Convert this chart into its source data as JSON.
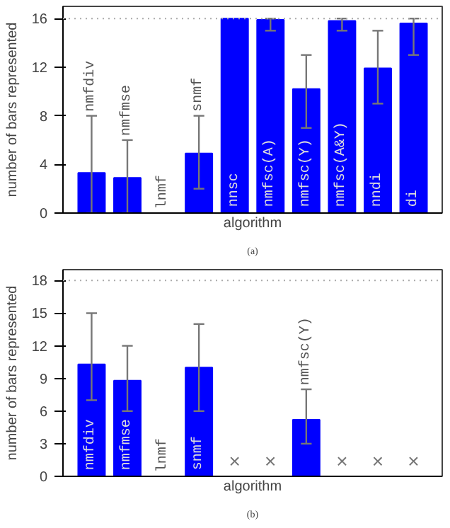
{
  "chart_data": [
    {
      "type": "bar",
      "ylabel": "number of bars represented",
      "xlabel": "algorithm",
      "annotations": [
        "(a)"
      ],
      "categories": [
        "nmfdiv",
        "nmfmse",
        "lnmf",
        "snmf",
        "nnsc",
        "nmfsc(A)",
        "nmfsc(Y)",
        "nmfsc(A&Y)",
        "nndi",
        "di"
      ],
      "values": [
        3.3,
        2.9,
        0,
        4.9,
        16,
        15.9,
        10.2,
        15.8,
        11.9,
        15.6
      ],
      "errors": [
        [
          0,
          8
        ],
        [
          0,
          6
        ],
        null,
        [
          2,
          8
        ],
        null,
        [
          15,
          16
        ],
        [
          7,
          13
        ],
        [
          15,
          16
        ],
        [
          9,
          15
        ],
        [
          13,
          16
        ]
      ],
      "color": "#0000ff",
      "ylim": [
        0,
        17
      ],
      "yticks": [
        0,
        4,
        8,
        12,
        16
      ],
      "tick_labels": "y",
      "ref_lines": [
        {
          "axis": "y",
          "value": 16,
          "label": null,
          "color": "#aaaaaa",
          "line_style": "dotted"
        }
      ]
    },
    {
      "type": "bar",
      "ylabel": "number of bars represented",
      "xlabel": "algorithm",
      "annotations": [
        "(b)"
      ],
      "categories": [
        "nmfdiv",
        "nmfmse",
        "lnmf",
        "snmf",
        null,
        null,
        "nmfsc(Y)",
        null,
        null,
        null
      ],
      "values": [
        10.3,
        8.8,
        0,
        10,
        null,
        null,
        5.2,
        null,
        null,
        null
      ],
      "errors": [
        [
          7,
          15
        ],
        [
          6,
          12
        ],
        null,
        [
          6,
          14
        ],
        null,
        null,
        [
          3,
          8
        ],
        null,
        null,
        null
      ],
      "value_labels": [
        null,
        null,
        null,
        null,
        "×",
        "×",
        null,
        "×",
        "×",
        "×"
      ],
      "color": "#0000ff",
      "ylim": [
        0,
        19
      ],
      "yticks": [
        0,
        3,
        6,
        9,
        12,
        15,
        18
      ],
      "tick_labels": "y",
      "ref_lines": [
        {
          "axis": "y",
          "value": 18,
          "label": null,
          "color": "#aaaaaa",
          "line_style": "dotted"
        }
      ]
    }
  ]
}
